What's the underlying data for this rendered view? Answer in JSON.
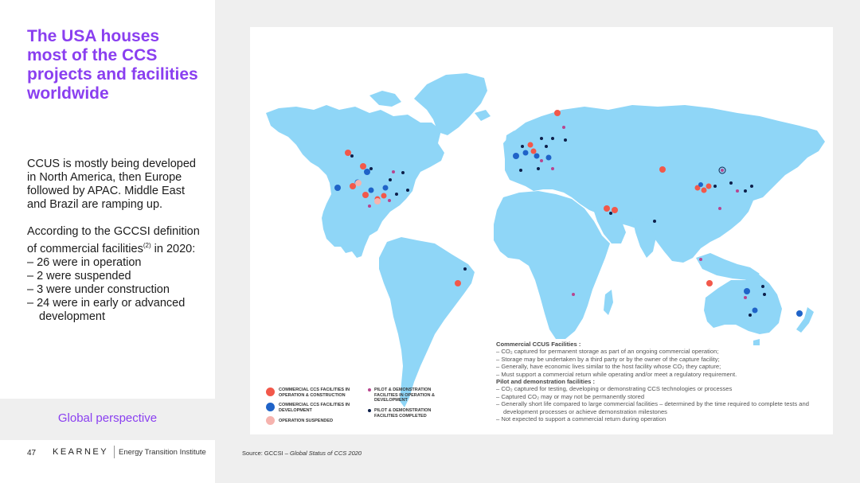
{
  "title": "The USA houses most of the CCS projects and facilities worldwide",
  "body": {
    "p1": "CCUS is mostly being developed in North America, then Europe followed by APAC. Middle East and Brazil are ramping up.",
    "p2_lead": "According to the GCCSI definition of commercial facilities",
    "p2_sup": "(2)",
    "p2_tail": " in 2020:",
    "bullets": [
      "– 26 were in operation",
      "– 2 were suspended",
      "– 3 were under construction",
      "– 24 were in early or advanced development"
    ]
  },
  "section_label": "Global perspective",
  "footer": {
    "page_number": "47",
    "brand": "KEARNEY",
    "institute": "Energy Transition Institute",
    "source_prefix": "Source: GCCSI – ",
    "source_title": "Global Status of CCS 2020"
  },
  "legend": {
    "commercial_operation": "COMMERCIAL CCS FACILITIES IN OPERATION & CONSTRUCTION",
    "commercial_development": "COMMERCIAL CCS FACILITIES IN DEVELOPMENT",
    "operation_suspended": "OPERATION SUSPENDED",
    "pilot_operation": "PILOT & DEMONSTRATION FACILITIES IN OPERATION & DEVELOPMENT",
    "pilot_completed": "PILOT & DEMONSTRATION FACILITIES COMPLETED"
  },
  "definitions": {
    "commercial_heading": "Commercial CCUS Facilities :",
    "commercial_items": [
      "– CO₂ captured for permanent storage as part of an ongoing commercial operation;",
      "– Storage may be undertaken by a third party or by the owner of the capture facility;",
      "– Generally, have economic lives similar to the host facility whose CO₂ they capture;",
      "– Must support a commercial return while operating and/or meet a regulatory requirement."
    ],
    "pilot_heading": "Pilot and demonstration facilities :",
    "pilot_items": [
      "– CO₂ captured for testing, developing or demonstrating CCS technologies or processes",
      "– Captured CO₂ may or may not be permanently stored",
      "– Generally short life compared to large commercial facilities – determined by the time required to complete tests and development processes or achieve demonstration milestones",
      "– Not expected to support a commercial return during operation"
    ]
  },
  "colors": {
    "accent": "#8a3ff0",
    "land": "#8fd6f7",
    "commercial_operation": "#f2584a",
    "commercial_development": "#1f63c8",
    "operation_suspended": "#f6b3ae",
    "pilot_operation": "#b8458f",
    "pilot_completed": "#0d1f4a"
  }
}
